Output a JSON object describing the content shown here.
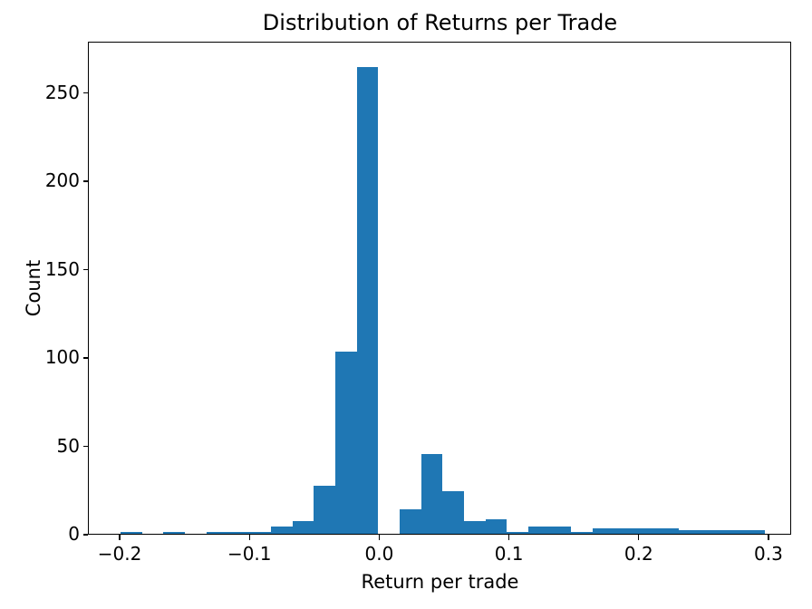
{
  "chart_data": {
    "type": "bar",
    "subtype": "histogram",
    "title": "Distribution of Returns per Trade",
    "xlabel": "Return per trade",
    "ylabel": "Count",
    "bar_color": "#1f77b4",
    "grid": false,
    "bin_edges": [
      -0.2,
      -0.1835,
      -0.1669,
      -0.1504,
      -0.1338,
      -0.1173,
      -0.1007,
      -0.0842,
      -0.0676,
      -0.0511,
      -0.0346,
      -0.018,
      -0.0015,
      0.0151,
      0.0316,
      0.0482,
      0.0647,
      0.0812,
      0.0978,
      0.1143,
      0.1309,
      0.1474,
      0.164,
      0.1805,
      0.1971,
      0.2136,
      0.2301,
      0.2467,
      0.2632,
      0.2798,
      0.2963
    ],
    "counts": [
      1,
      0,
      1,
      0,
      1,
      1,
      1,
      4,
      7,
      27,
      103,
      264,
      0,
      14,
      45,
      24,
      7,
      8,
      1,
      4,
      4,
      1,
      3,
      3,
      3,
      3,
      2,
      2,
      2,
      2
    ],
    "xlim": [
      -0.2245,
      0.3175
    ],
    "ylim": [
      0,
      279
    ],
    "xticks": [
      -0.2,
      -0.1,
      0.0,
      0.1,
      0.2,
      0.3
    ],
    "xtick_labels": [
      "−0.2",
      "−0.1",
      "0.0",
      "0.1",
      "0.2",
      "0.3"
    ],
    "yticks": [
      0,
      50,
      100,
      150,
      200,
      250
    ],
    "ytick_labels": [
      "0",
      "50",
      "100",
      "150",
      "200",
      "250"
    ]
  }
}
